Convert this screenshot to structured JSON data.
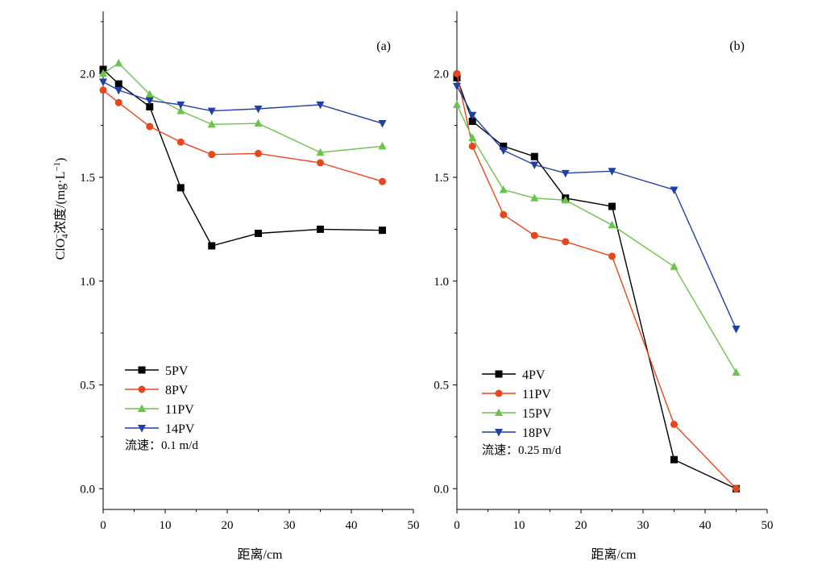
{
  "chart_data": [
    {
      "type": "line",
      "panel_label": "(a)",
      "xlabel": "距离/cm",
      "ylabel": "ClO4-浓度/(mg·L-1)",
      "ylabel_parts": {
        "base": "ClO",
        "sub": "4",
        "sup_charge": "−",
        "mid": "浓度/(mg·L",
        "sup_exp": "−1",
        "tail": ")"
      },
      "xlim": [
        0,
        50
      ],
      "ylim": [
        -0.1,
        2.3
      ],
      "xticks": [
        "0",
        "10",
        "20",
        "30",
        "40",
        "50"
      ],
      "yticks": [
        "0.0",
        "0.5",
        "1.0",
        "1.5",
        "2.0"
      ],
      "note": "流速：0.1 m/d",
      "legend_position": "bottom-left",
      "x": [
        0,
        2.5,
        7.5,
        12.5,
        17.5,
        25,
        35,
        45
      ],
      "series": [
        {
          "name": "5PV",
          "color": "#000000",
          "marker": "square",
          "values": [
            2.02,
            1.95,
            1.84,
            1.45,
            1.17,
            1.23,
            1.25,
            1.245
          ]
        },
        {
          "name": "8PV",
          "color": "#e8471c",
          "marker": "circle",
          "values": [
            1.92,
            1.86,
            1.745,
            1.67,
            1.61,
            1.615,
            1.57,
            1.48
          ]
        },
        {
          "name": "11PV",
          "color": "#6cc24a",
          "marker": "triangle-up",
          "values": [
            2.0,
            2.05,
            1.9,
            1.82,
            1.755,
            1.76,
            1.62,
            1.65
          ]
        },
        {
          "name": "14PV",
          "color": "#1f3fa8",
          "marker": "triangle-down",
          "values": [
            1.96,
            1.92,
            1.87,
            1.85,
            1.82,
            1.83,
            1.85,
            1.76
          ]
        }
      ]
    },
    {
      "type": "line",
      "panel_label": "(b)",
      "xlabel": "距离/cm",
      "xlim": [
        0,
        50
      ],
      "ylim": [
        -0.1,
        2.3
      ],
      "xticks": [
        "0",
        "10",
        "20",
        "30",
        "40",
        "50"
      ],
      "yticks": [
        "0.0",
        "0.5",
        "1.0",
        "1.5",
        "2.0"
      ],
      "note": "流速：0.25 m/d",
      "legend_position": "bottom-left",
      "x": [
        0,
        2.5,
        7.5,
        12.5,
        17.5,
        25,
        35,
        45
      ],
      "series": [
        {
          "name": "4PV",
          "color": "#000000",
          "marker": "square",
          "values": [
            1.98,
            1.77,
            1.65,
            1.6,
            1.4,
            1.36,
            0.14,
            0.0
          ]
        },
        {
          "name": "11PV",
          "color": "#e8471c",
          "marker": "circle",
          "values": [
            2.0,
            1.65,
            1.32,
            1.22,
            1.19,
            1.12,
            0.31,
            0.0
          ]
        },
        {
          "name": "15PV",
          "color": "#6cc24a",
          "marker": "triangle-up",
          "values": [
            1.85,
            1.69,
            1.44,
            1.4,
            1.39,
            1.27,
            1.07,
            0.56
          ]
        },
        {
          "name": "18PV",
          "color": "#1f3fa8",
          "marker": "triangle-down",
          "values": [
            1.94,
            1.8,
            1.63,
            1.56,
            1.52,
            1.53,
            1.44,
            0.77
          ]
        }
      ]
    }
  ]
}
